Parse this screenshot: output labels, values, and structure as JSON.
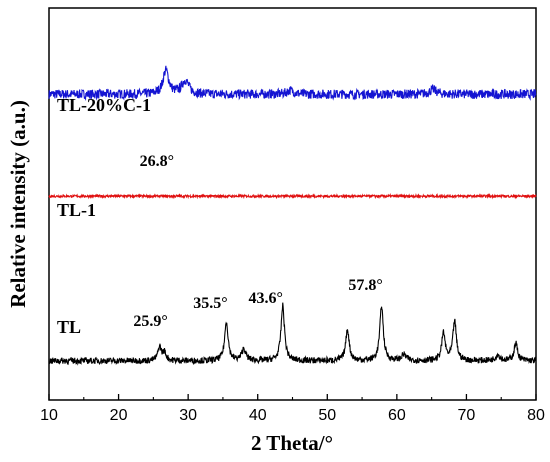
{
  "chart_data": {
    "type": "line",
    "title": "",
    "xlabel": "2 Theta/°",
    "ylabel": "Relative intensity (a.u.)",
    "xlim": [
      10,
      80
    ],
    "xticks": [
      "10",
      "20",
      "30",
      "40",
      "50",
      "60",
      "70",
      "80"
    ],
    "y_tick_labels": false,
    "grid": false,
    "legend": "none (labels placed beside each curve)",
    "series": [
      {
        "name": "TL-20%C-1",
        "color": "#1414d2",
        "baseline": 0.78,
        "noise": 0.012,
        "peaks": [
          [
            26.8,
            0.06,
            0.5
          ],
          [
            29.6,
            0.035,
            0.6
          ],
          [
            44.7,
            0.01,
            0.6
          ],
          [
            65.2,
            0.012,
            0.6
          ]
        ]
      },
      {
        "name": "TL-1",
        "color": "#e01010",
        "baseline": 0.52,
        "noise": 0.003,
        "peaks": []
      },
      {
        "name": "TL",
        "color": "#000000",
        "baseline": 0.1,
        "noise": 0.008,
        "peaks": [
          [
            25.9,
            0.035,
            0.3
          ],
          [
            26.6,
            0.02,
            0.3
          ],
          [
            35.5,
            0.1,
            0.3
          ],
          [
            38.0,
            0.03,
            0.35
          ],
          [
            43.6,
            0.14,
            0.3
          ],
          [
            52.9,
            0.08,
            0.3
          ],
          [
            57.8,
            0.14,
            0.3
          ],
          [
            61.0,
            0.015,
            0.4
          ],
          [
            66.7,
            0.07,
            0.3
          ],
          [
            68.3,
            0.1,
            0.3
          ],
          [
            74.5,
            0.015,
            0.4
          ],
          [
            77.1,
            0.045,
            0.3
          ]
        ]
      }
    ],
    "annotations": [
      {
        "text": "26.8°",
        "x": 26.8,
        "series": "TL-20%C-1"
      },
      {
        "text": "25.9°",
        "x": 25.9,
        "series": "TL"
      },
      {
        "text": "35.5°",
        "x": 35.5,
        "series": "TL"
      },
      {
        "text": "43.6°",
        "x": 43.6,
        "series": "TL"
      },
      {
        "text": "57.8°",
        "x": 57.8,
        "series": "TL"
      }
    ]
  }
}
